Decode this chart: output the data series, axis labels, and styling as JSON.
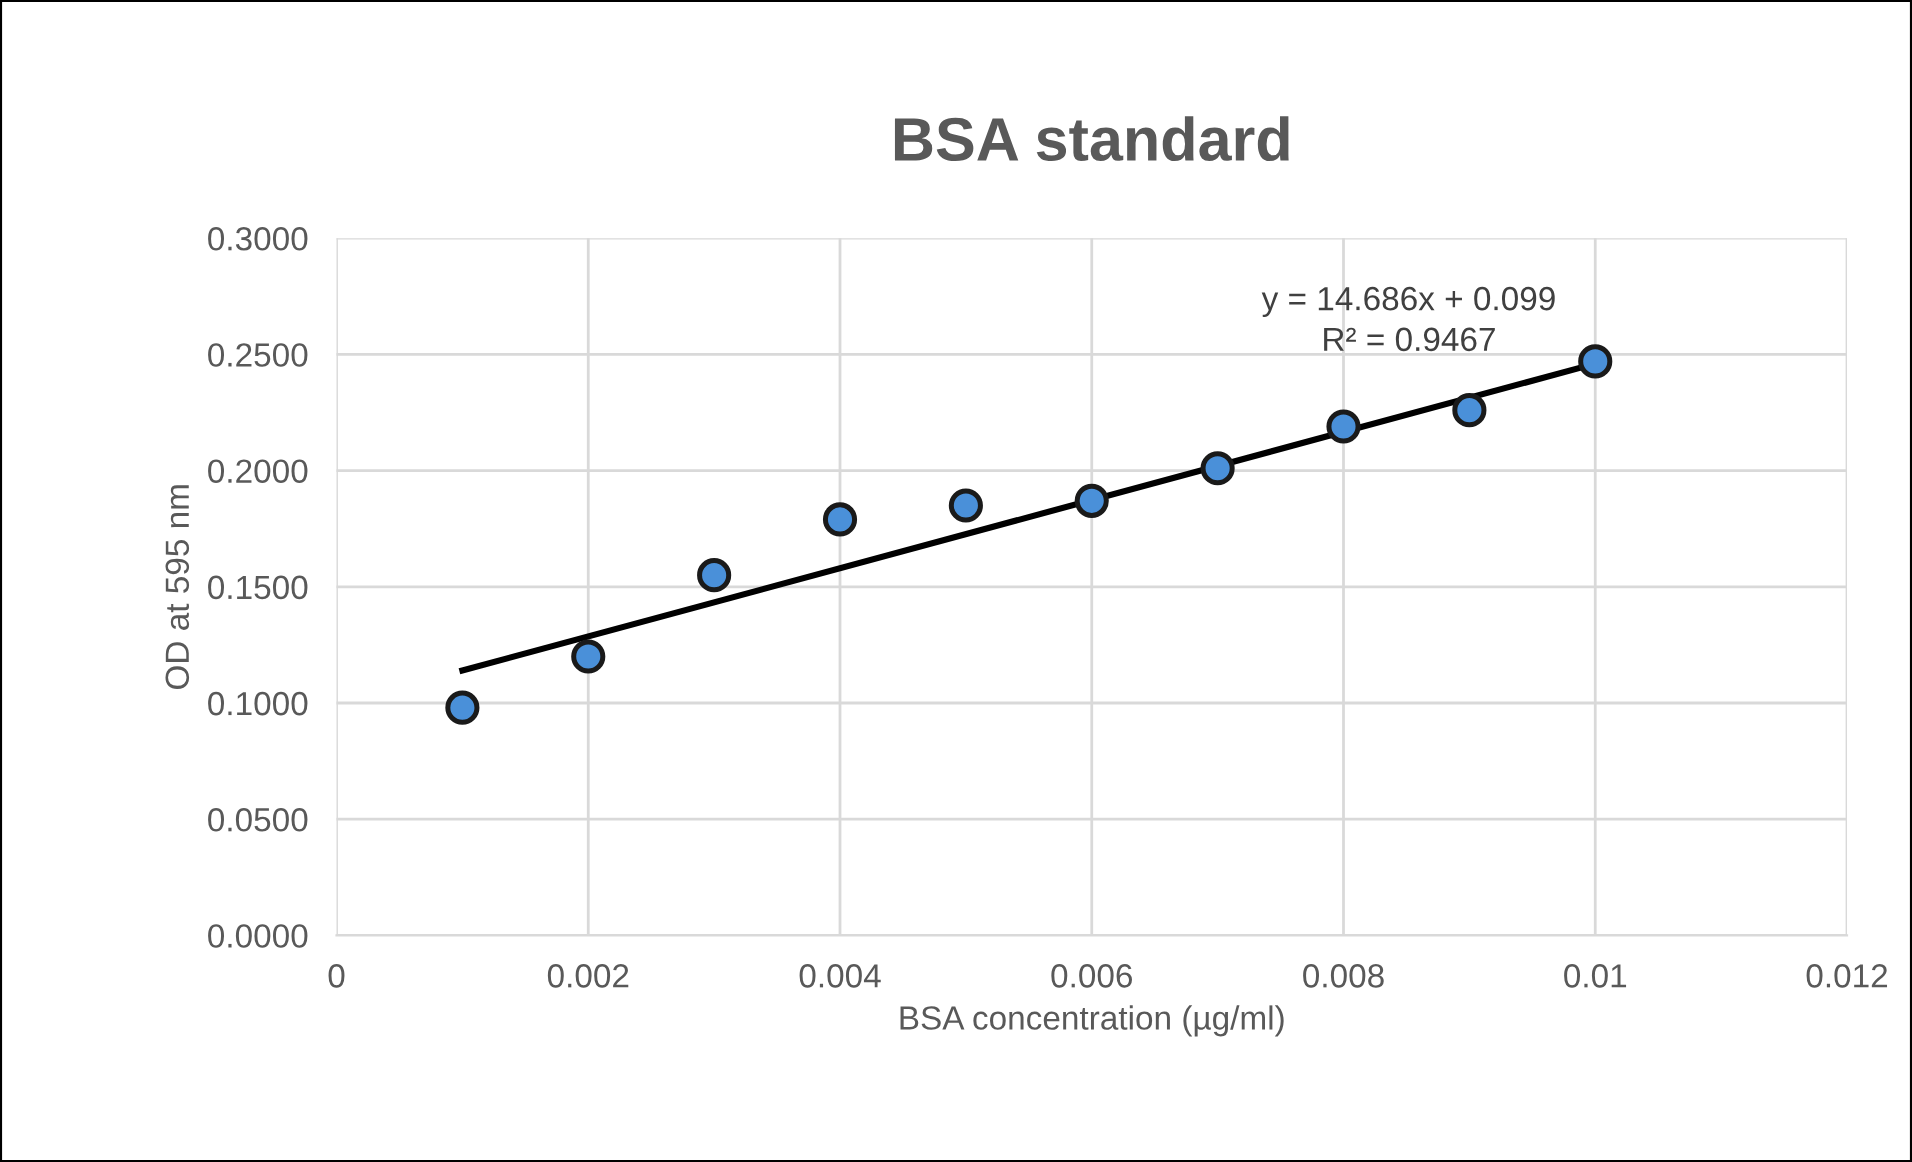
{
  "chart_data": {
    "type": "scatter",
    "title": "BSA standard",
    "xlabel": "BSA concentration (µg/ml)",
    "ylabel": "OD at 595 nm",
    "x": [
      0.001,
      0.002,
      0.003,
      0.004,
      0.005,
      0.006,
      0.007,
      0.008,
      0.009,
      0.01
    ],
    "series": [
      {
        "color": "#4a90d9",
        "values": [
          0.098,
          0.12,
          0.155,
          0.179,
          0.185,
          0.187,
          0.201,
          0.219,
          0.226,
          0.247
        ],
        "marker": "circle"
      },
      {
        "type": "line",
        "color": "#000000",
        "x": [
          0.001,
          0.01
        ],
        "values": [
          0.114,
          0.246
        ],
        "marker": "none",
        "line_style": "solid"
      }
    ],
    "annotations": [
      "y = 14.686x + 0.099\nR² = 0.9467"
    ],
    "xlim": [
      0,
      0.012
    ],
    "xticks": [
      0,
      0.002,
      0.004,
      0.006,
      0.008,
      0.01,
      0.012
    ],
    "ylim": [
      0,
      0.3
    ],
    "yticks": [
      {
        "value": 0,
        "label": "0.0000"
      },
      {
        "value": 0.05,
        "label": "0.0500"
      },
      {
        "value": 0.1,
        "label": "0.1000"
      },
      {
        "value": 0.15,
        "label": "0.1500"
      },
      {
        "value": 0.2,
        "label": "0.2000"
      },
      {
        "value": 0.25,
        "label": "0.2500"
      },
      {
        "value": 0.3,
        "label": "0.3000"
      }
    ],
    "grid": true,
    "legend": false
  }
}
